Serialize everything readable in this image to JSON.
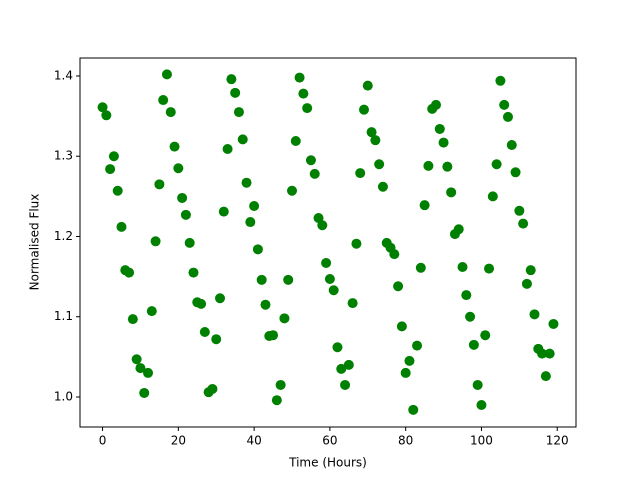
{
  "chart_data": {
    "type": "scatter",
    "xlabel": "Time (Hours)",
    "ylabel": "Normalised Flux",
    "color": "#008000",
    "x": [
      0,
      1,
      2,
      3,
      4,
      5,
      6,
      7,
      8,
      9,
      10,
      11,
      12,
      13,
      14,
      15,
      16,
      17,
      18,
      19,
      20,
      21,
      22,
      23,
      24,
      25,
      26,
      27,
      28,
      29,
      30,
      31,
      32,
      33,
      34,
      35,
      36,
      37,
      38,
      39,
      40,
      41,
      42,
      43,
      44,
      45,
      46,
      47,
      48,
      49,
      50,
      51,
      52,
      53,
      54,
      55,
      56,
      57,
      58,
      59,
      60,
      61,
      62,
      63,
      64,
      65,
      66,
      67,
      68,
      69,
      70,
      71,
      72,
      73,
      74,
      75,
      76,
      77,
      78,
      79,
      80,
      81,
      82,
      83,
      84,
      85,
      86,
      87,
      88,
      89,
      90,
      91,
      92,
      93,
      94,
      95,
      96,
      97,
      98,
      99,
      100,
      101,
      102,
      103,
      104,
      105,
      106,
      107,
      108,
      109,
      110,
      111,
      112,
      113,
      114,
      115,
      116,
      117,
      118,
      119
    ],
    "y": [
      1.361,
      1.351,
      1.284,
      1.3,
      1.257,
      1.212,
      1.158,
      1.155,
      1.097,
      1.047,
      1.036,
      1.005,
      1.03,
      1.107,
      1.194,
      1.265,
      1.37,
      1.402,
      1.355,
      1.312,
      1.285,
      1.248,
      1.227,
      1.192,
      1.155,
      1.118,
      1.116,
      1.081,
      1.006,
      1.01,
      1.072,
      1.123,
      1.231,
      1.309,
      1.396,
      1.379,
      1.355,
      1.321,
      1.267,
      1.218,
      1.238,
      1.184,
      1.146,
      1.115,
      1.076,
      1.077,
      0.996,
      1.015,
      1.098,
      1.146,
      1.257,
      1.319,
      1.398,
      1.378,
      1.36,
      1.295,
      1.278,
      1.223,
      1.214,
      1.167,
      1.147,
      1.133,
      1.062,
      1.035,
      1.015,
      1.04,
      1.117,
      1.191,
      1.279,
      1.358,
      1.388,
      1.33,
      1.32,
      1.29,
      1.262,
      1.192,
      1.186,
      1.178,
      1.138,
      1.088,
      1.03,
      1.045,
      0.984,
      1.064,
      1.161,
      1.239,
      1.288,
      1.359,
      1.364,
      1.334,
      1.317,
      1.287,
      1.255,
      1.203,
      1.209,
      1.162,
      1.127,
      1.1,
      1.065,
      1.015,
      0.99,
      1.077,
      1.16,
      1.25,
      1.29,
      1.394,
      1.364,
      1.349,
      1.314,
      1.28,
      1.232,
      1.216,
      1.141,
      1.158,
      1.103,
      1.06,
      1.054,
      1.026,
      1.054,
      1.091
    ],
    "xlim": [
      -5.95,
      124.95
    ],
    "ylim": [
      0.9626,
      1.4224
    ],
    "xticks": [
      0,
      20,
      40,
      60,
      80,
      100,
      120
    ],
    "yticks": [
      {
        "value": 1.0,
        "label": "1.0"
      },
      {
        "value": 1.1,
        "label": "1.1"
      },
      {
        "value": 1.2,
        "label": "1.2"
      },
      {
        "value": 1.3,
        "label": "1.3"
      },
      {
        "value": 1.4,
        "label": "1.4"
      }
    ]
  }
}
